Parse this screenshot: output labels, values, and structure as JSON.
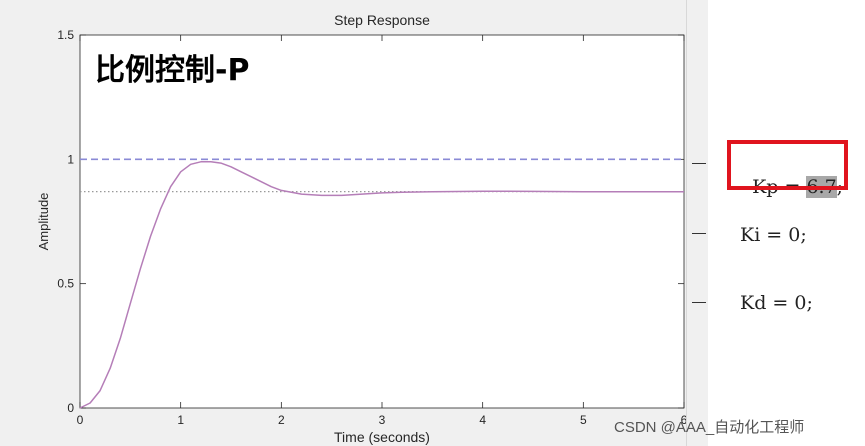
{
  "chart_data": {
    "type": "line",
    "title": "Step Response",
    "annotation": "比例控制-P",
    "xlabel": "Time (seconds)",
    "ylabel": "Amplitude",
    "xlim": [
      0,
      6
    ],
    "ylim": [
      0,
      1.5
    ],
    "x_ticks": [
      "0",
      "1",
      "2",
      "3",
      "4",
      "5",
      "6"
    ],
    "y_ticks": [
      "0",
      "0.5",
      "1",
      "1.5"
    ],
    "grid": false,
    "series": [
      {
        "color": "#b57eb8",
        "x": [
          0,
          0.1,
          0.2,
          0.3,
          0.4,
          0.5,
          0.6,
          0.7,
          0.8,
          0.9,
          1.0,
          1.1,
          1.2,
          1.3,
          1.4,
          1.5,
          1.6,
          1.7,
          1.8,
          1.9,
          2.0,
          2.2,
          2.4,
          2.6,
          2.8,
          3.0,
          3.2,
          3.5,
          4.0,
          4.5,
          5.0,
          5.5,
          6.0
        ],
        "y": [
          0,
          0.02,
          0.07,
          0.16,
          0.28,
          0.42,
          0.56,
          0.69,
          0.8,
          0.89,
          0.95,
          0.98,
          0.99,
          0.99,
          0.985,
          0.97,
          0.95,
          0.93,
          0.91,
          0.89,
          0.875,
          0.86,
          0.855,
          0.855,
          0.86,
          0.865,
          0.868,
          0.87,
          0.872,
          0.871,
          0.87,
          0.87,
          0.87
        ]
      }
    ],
    "reference_lines": [
      {
        "y": 1.0,
        "color": "#8a8ad6",
        "style": "dashed"
      },
      {
        "y": 0.87,
        "color": "#999999",
        "style": "dotted"
      }
    ]
  },
  "code": {
    "kp_prefix": "Kp = ",
    "kp_value": "6.7",
    "kp_suffix": ";",
    "ki": "Ki = 0;",
    "kd": "Kd = 0;"
  },
  "watermark": "CSDN @AAA_自动化工程师"
}
